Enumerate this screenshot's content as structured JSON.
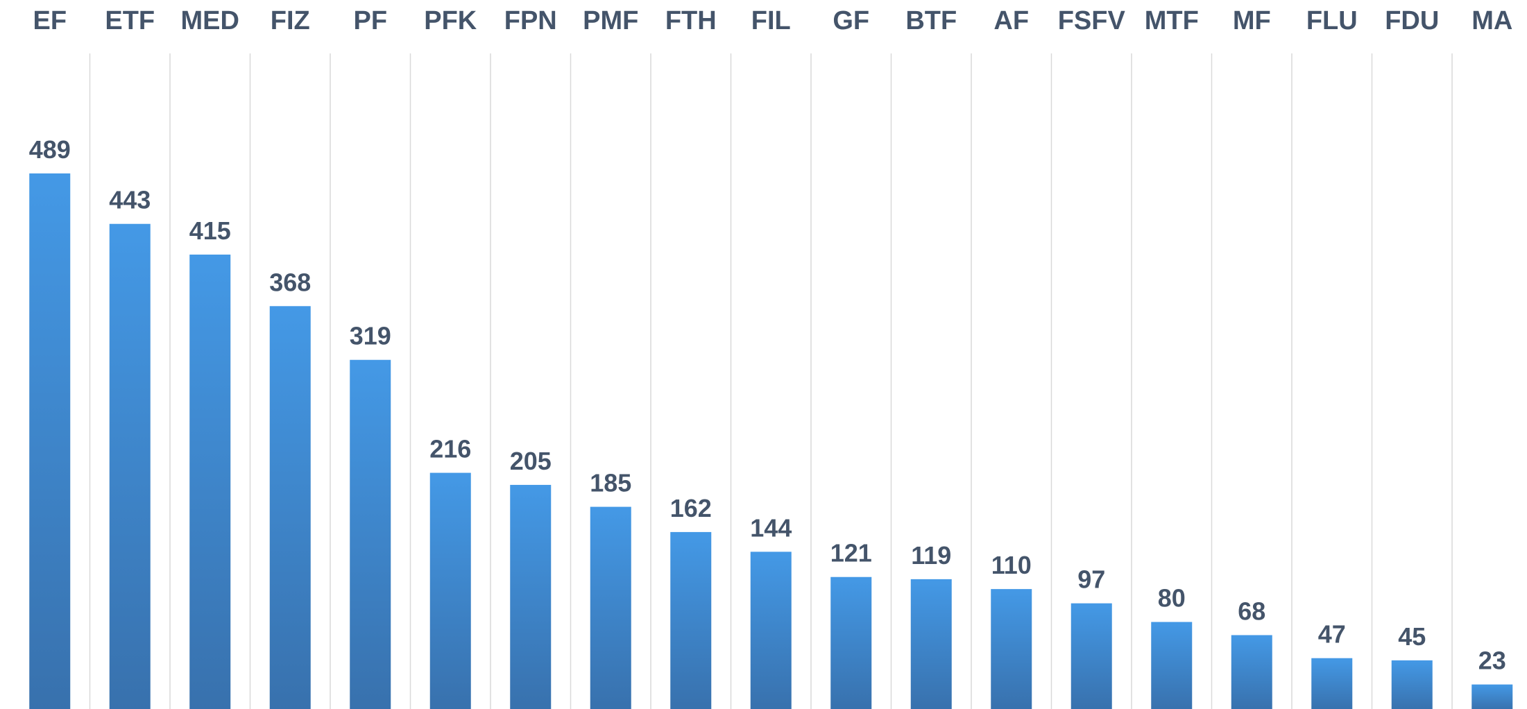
{
  "chart_data": {
    "type": "bar",
    "categories": [
      "EF",
      "ETF",
      "MED",
      "FIZ",
      "PF",
      "PFK",
      "FPN",
      "PMF",
      "FTH",
      "FIL",
      "GF",
      "BTF",
      "AF",
      "FSFV",
      "MTF",
      "MF",
      "FLU",
      "FDU",
      "MA"
    ],
    "values": [
      489,
      443,
      415,
      368,
      319,
      216,
      205,
      185,
      162,
      144,
      121,
      119,
      110,
      97,
      80,
      68,
      47,
      45,
      23
    ],
    "color": "#4499e6",
    "grid": true
  }
}
